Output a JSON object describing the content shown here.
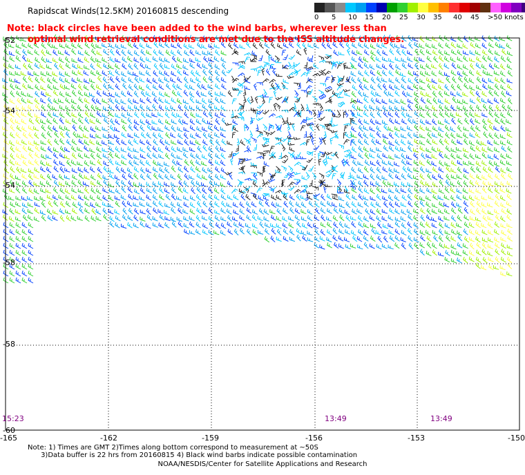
{
  "title": "Rapidscat Winds(12.5KM) 20160815 descending",
  "note": {
    "line1": "Note: black circles have been added to the wind barbs, wherever less than",
    "line2": "optimal wind retrieval conditions are met due to the ISS altitude changes."
  },
  "legend": {
    "labels": [
      "0",
      "5",
      "10",
      "15",
      "20",
      "25",
      "30",
      "35",
      "40",
      "45",
      ">50 knots"
    ],
    "colors": [
      "#222222",
      "#555555",
      "#8a8a8a",
      "#00c8ff",
      "#00a0f0",
      "#0040ff",
      "#0000b0",
      "#00a000",
      "#30d030",
      "#a0f000",
      "#ffff40",
      "#ffc000",
      "#ff8000",
      "#ff3030",
      "#e00000",
      "#a00000",
      "#603010",
      "#ff60ff",
      "#d000e0",
      "#8000c0",
      "#400080"
    ]
  },
  "axes": {
    "lat_labels": [
      "-52",
      "-54",
      "-54",
      "-58",
      "-58",
      "-60"
    ],
    "lon_labels": [
      "-165",
      "-162",
      "-159",
      "-156",
      "-153",
      "-150"
    ]
  },
  "time_labels": [
    "15:23",
    "13:49",
    "13:49"
  ],
  "footnote": {
    "line1": "Note: 1) Times are GMT 2)Times along bottom correspond to measurement at ~50S",
    "line2": "      3)Data buffer is 22 hrs from 20160815 4) Black wind barbs indicate possible contamination"
  },
  "credit": "NOAA/NESDIS/Center for Satellite Applications and Research"
}
